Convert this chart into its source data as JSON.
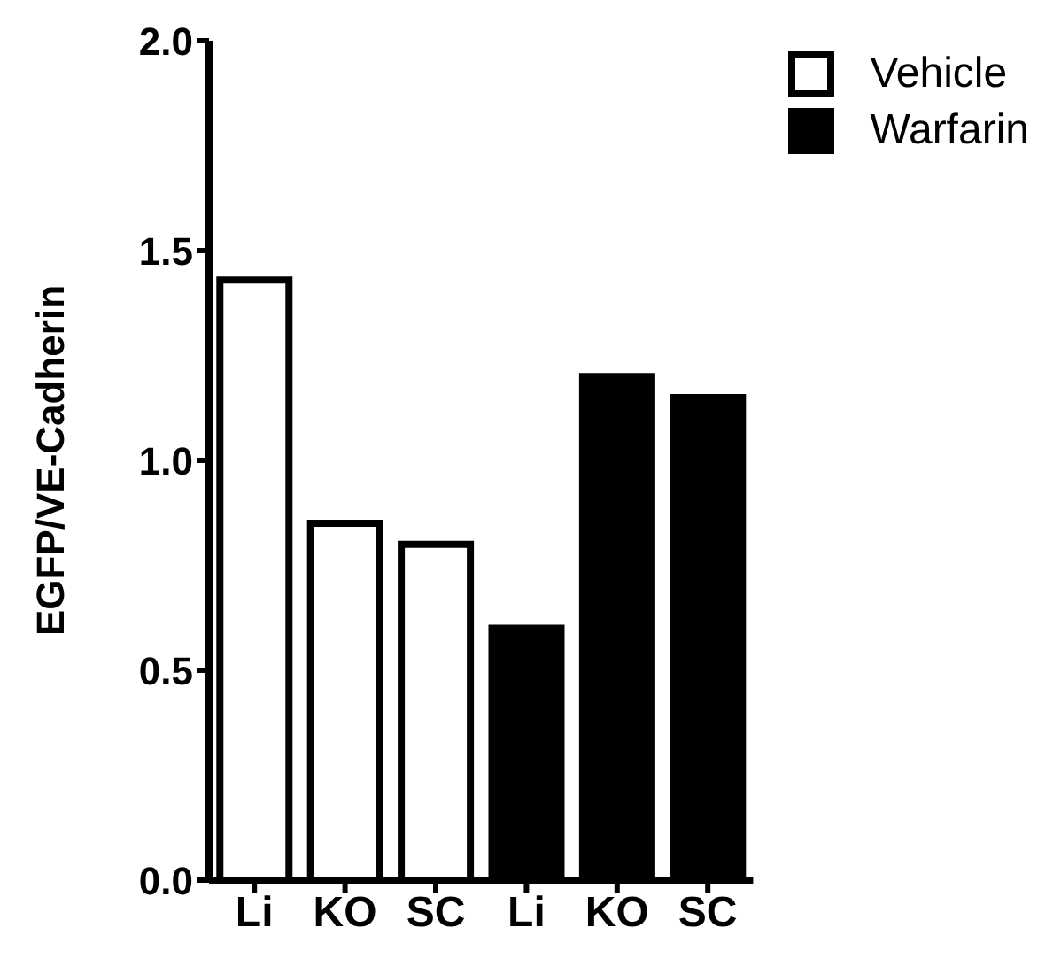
{
  "chart_data": {
    "type": "bar",
    "ylabel": "EGFP/VE-Cadherin",
    "categories": [
      "Li",
      "KO",
      "SC",
      "Li",
      "KO",
      "SC"
    ],
    "series": [
      {
        "name": "Vehicle",
        "color": "#ffffff",
        "values": [
          1.43,
          0.85,
          0.8,
          null,
          null,
          null
        ]
      },
      {
        "name": "Warfarin",
        "color": "#000000",
        "values": [
          null,
          null,
          null,
          0.6,
          1.2,
          1.15
        ]
      }
    ],
    "ylim": [
      0,
      2
    ],
    "yticks": [
      {
        "value": 0,
        "label": "0.0"
      },
      {
        "value": 0.5,
        "label": "0.5"
      },
      {
        "value": 1,
        "label": "1.0"
      },
      {
        "value": 1.5,
        "label": "1.5"
      },
      {
        "value": 2,
        "label": "2.0"
      }
    ],
    "legend": "top right",
    "grid": false
  }
}
